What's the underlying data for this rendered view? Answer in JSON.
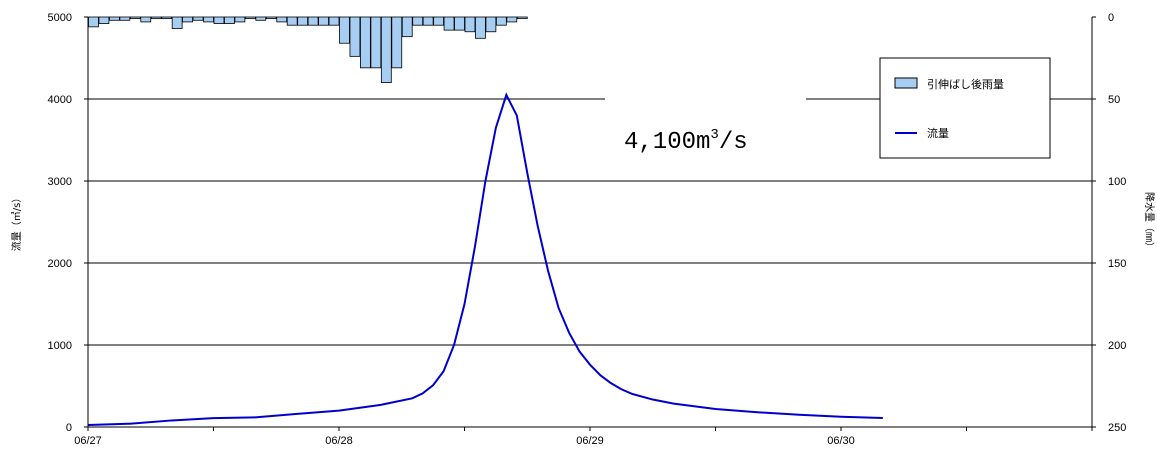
{
  "chart_data": {
    "type": "bar+line",
    "x_labels": [
      "06/27",
      "06/28",
      "06/29",
      "06/30"
    ],
    "y_left": {
      "label": "流量（㎥/s）",
      "ticks": [
        "0",
        "1000",
        "2000",
        "3000",
        "4000",
        "5000"
      ],
      "range": [
        0,
        5000
      ]
    },
    "y_right": {
      "label": "降水量（㎜）",
      "ticks": [
        "0",
        "50",
        "100",
        "150",
        "200",
        "250"
      ],
      "range": [
        0,
        250
      ],
      "inverted": true
    },
    "legend": {
      "rain": "引伸ばし後雨量",
      "flow": "流量"
    },
    "annotation": {
      "value": "4,100",
      "unit": "m",
      "exp": "3",
      "tail": "/s"
    },
    "rain_series": {
      "name": "引伸ばし後雨量",
      "color": "#a6cef2",
      "values": [
        6,
        4,
        2,
        2,
        1,
        3,
        1,
        1,
        7,
        3,
        2,
        3,
        4,
        4,
        3,
        1,
        2,
        1,
        3,
        5,
        5,
        5,
        5,
        5,
        16,
        24,
        31,
        31,
        40,
        31,
        12,
        5,
        5,
        5,
        8,
        8,
        9,
        13,
        9,
        5,
        3,
        1,
        0,
        0,
        0,
        0,
        0,
        0,
        0,
        0,
        0,
        0,
        0,
        0,
        0,
        0,
        0,
        0,
        0,
        0,
        0,
        0,
        0,
        0,
        0,
        0,
        0,
        0,
        0,
        0,
        0,
        0,
        0,
        0,
        0,
        0,
        0,
        0,
        0,
        0,
        0,
        0,
        0,
        0,
        0,
        0,
        0,
        0,
        0,
        0,
        0,
        0,
        0,
        0,
        0,
        0
      ]
    },
    "flow_series": {
      "name": "流量",
      "color": "#0000cc",
      "points": [
        [
          0,
          25
        ],
        [
          4,
          40
        ],
        [
          8,
          80
        ],
        [
          12,
          108
        ],
        [
          16,
          118
        ],
        [
          20,
          160
        ],
        [
          24,
          200
        ],
        [
          28,
          270
        ],
        [
          31,
          350
        ],
        [
          32,
          410
        ],
        [
          33,
          510
        ],
        [
          34,
          680
        ],
        [
          35,
          1000
        ],
        [
          36,
          1500
        ],
        [
          37,
          2200
        ],
        [
          38,
          3000
        ],
        [
          39,
          3650
        ],
        [
          40,
          4050
        ],
        [
          41,
          3800
        ],
        [
          42,
          3100
        ],
        [
          43,
          2450
        ],
        [
          44,
          1900
        ],
        [
          45,
          1450
        ],
        [
          46,
          1150
        ],
        [
          47,
          920
        ],
        [
          48,
          760
        ],
        [
          49,
          630
        ],
        [
          50,
          535
        ],
        [
          51,
          460
        ],
        [
          52,
          405
        ],
        [
          54,
          335
        ],
        [
          56,
          285
        ],
        [
          60,
          220
        ],
        [
          64,
          180
        ],
        [
          68,
          150
        ],
        [
          72,
          125
        ],
        [
          76,
          110
        ]
      ]
    },
    "grid": true,
    "legend_position": "top-right"
  }
}
